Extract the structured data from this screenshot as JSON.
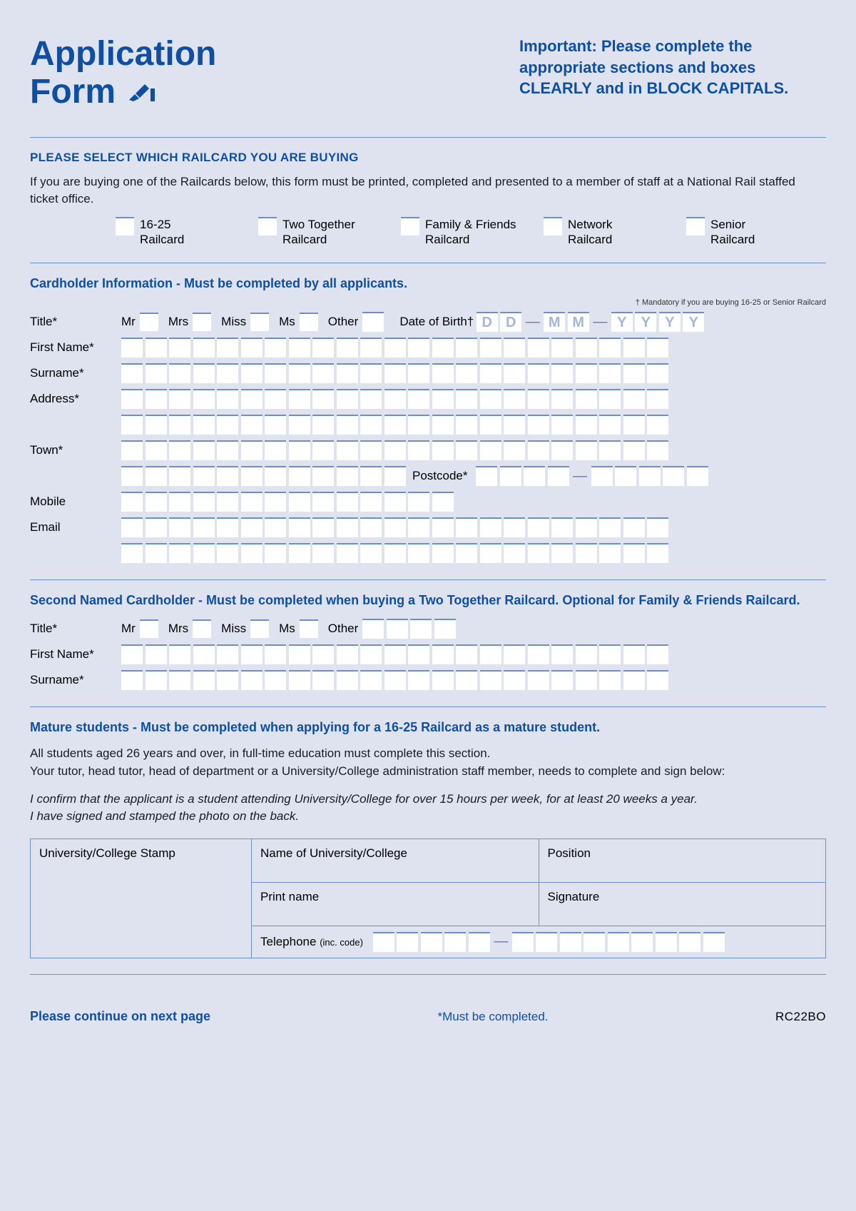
{
  "header": {
    "title_line1": "Application",
    "title_line2": "Form",
    "important": "Important: Please complete the appropriate sections and boxes CLEARLY and in BLOCK CAPITALS."
  },
  "select_railcard": {
    "heading": "PLEASE SELECT WHICH RAILCARD YOU ARE BUYING",
    "intro": "If you are buying one of the Railcards below, this form must be printed, completed and presented to a member of staff at a National Rail staffed ticket office.",
    "options": [
      {
        "l1": "16-25",
        "l2": "Railcard"
      },
      {
        "l1": "Two Together",
        "l2": "Railcard"
      },
      {
        "l1": "Family & Friends",
        "l2": "Railcard"
      },
      {
        "l1": "Network",
        "l2": "Railcard"
      },
      {
        "l1": "Senior",
        "l2": "Railcard"
      }
    ]
  },
  "cardholder": {
    "heading": "Cardholder Information - Must be completed by all applicants.",
    "note": "† Mandatory if you are buying 16-25 or Senior Railcard",
    "labels": {
      "title": "Title*",
      "mr": "Mr",
      "mrs": "Mrs",
      "miss": "Miss",
      "ms": "Ms",
      "other": "Other",
      "dob": "Date of Birth†",
      "first": "First Name*",
      "sur": "Surname*",
      "addr": "Address*",
      "town": "Town*",
      "postcode": "Postcode*",
      "mobile": "Mobile",
      "email": "Email"
    },
    "dob_ph": [
      "D",
      "D",
      "M",
      "M",
      "Y",
      "Y",
      "Y",
      "Y"
    ]
  },
  "second": {
    "heading": "Second Named Cardholder - Must be completed when buying a Two Together Railcard. Optional for Family & Friends Railcard.",
    "labels": {
      "title": "Title*",
      "mr": "Mr",
      "mrs": "Mrs",
      "miss": "Miss",
      "ms": "Ms",
      "other": "Other",
      "first": "First Name*",
      "sur": "Surname*"
    }
  },
  "mature": {
    "heading": "Mature students - Must be completed when applying for a 16-25 Railcard as a mature student.",
    "p1": "All students aged 26 years and over, in full-time education must complete this section.",
    "p2": "Your tutor, head tutor, head of department or a University/College administration staff member, needs to complete and sign below:",
    "i1": "I confirm that the applicant is a student attending University/College for over 15 hours per week, for at least 20 weeks a year.",
    "i2": "I have signed and stamped the photo on the back.",
    "stamp": "University/College Stamp",
    "uni": "Name of University/College",
    "position": "Position",
    "print": "Print name",
    "sig": "Signature",
    "tel": "Telephone",
    "tel_sub": "(inc. code)"
  },
  "footer": {
    "continue": "Please continue on next page",
    "must": "*Must be completed.",
    "code": "RC22BO"
  },
  "colors": {
    "brand": "#0e4fa3",
    "bg": "#dfe3f0",
    "rule": "#6a8fc9",
    "box_bg": "#ffffff",
    "placeholder": "#a4b7d8"
  }
}
